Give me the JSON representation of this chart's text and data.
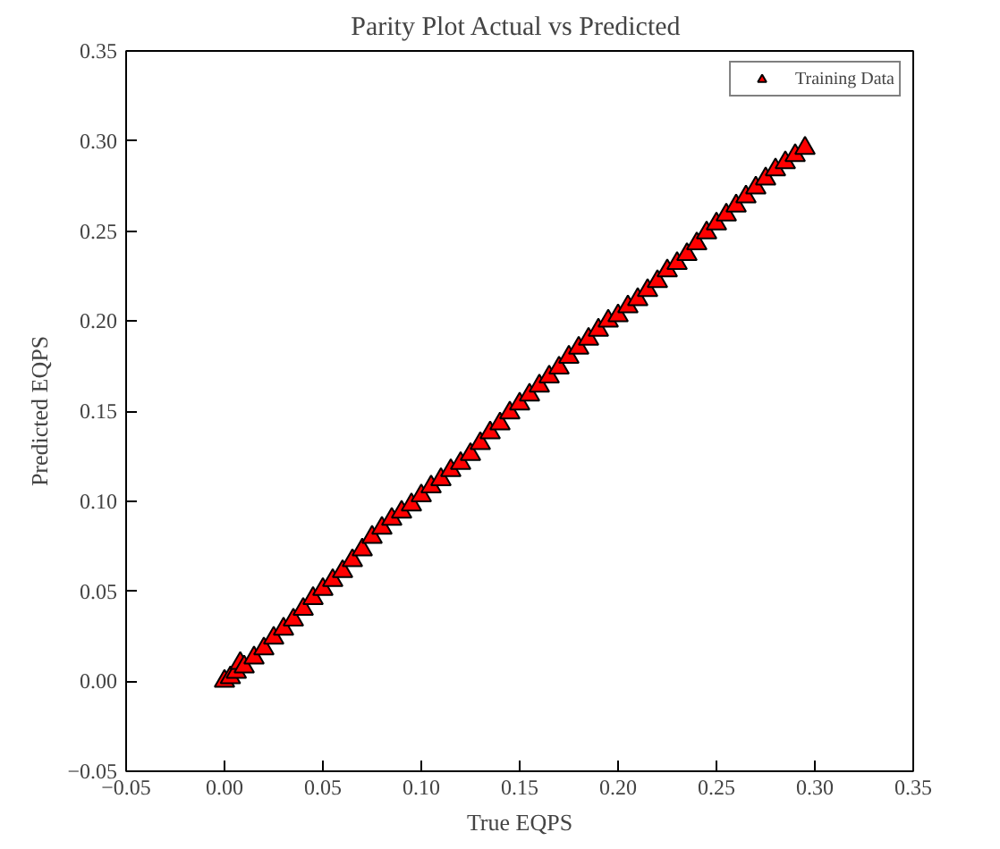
{
  "chart_data": {
    "type": "scatter",
    "title": "Parity Plot Actual  vs Predicted",
    "xlabel": "True EQPS",
    "ylabel": "Predicted EQPS",
    "xlim": [
      -0.05,
      0.35
    ],
    "ylim": [
      -0.05,
      0.35
    ],
    "xticks": [
      {
        "value": -0.05,
        "label": "−0.05"
      },
      {
        "value": 0.0,
        "label": "0.00"
      },
      {
        "value": 0.05,
        "label": "0.05"
      },
      {
        "value": 0.1,
        "label": "0.10"
      },
      {
        "value": 0.15,
        "label": "0.15"
      },
      {
        "value": 0.2,
        "label": "0.20"
      },
      {
        "value": 0.25,
        "label": "0.25"
      },
      {
        "value": 0.3,
        "label": "0.30"
      },
      {
        "value": 0.35,
        "label": "0.35"
      }
    ],
    "yticks": [
      {
        "value": -0.05,
        "label": "−0.05"
      },
      {
        "value": 0.0,
        "label": "0.00"
      },
      {
        "value": 0.05,
        "label": "0.05"
      },
      {
        "value": 0.1,
        "label": "0.10"
      },
      {
        "value": 0.15,
        "label": "0.15"
      },
      {
        "value": 0.2,
        "label": "0.20"
      },
      {
        "value": 0.25,
        "label": "0.25"
      },
      {
        "value": 0.3,
        "label": "0.30"
      },
      {
        "value": 0.35,
        "label": "0.35"
      }
    ],
    "grid": false,
    "legend": "top right",
    "marker": "triangle",
    "series": [
      {
        "name": "Training Data",
        "color": "#ff0000",
        "x": [
          0.0,
          0.003,
          0.006,
          0.008,
          0.01,
          0.015,
          0.02,
          0.025,
          0.03,
          0.035,
          0.04,
          0.045,
          0.05,
          0.055,
          0.06,
          0.065,
          0.07,
          0.075,
          0.08,
          0.085,
          0.09,
          0.095,
          0.1,
          0.105,
          0.11,
          0.115,
          0.12,
          0.125,
          0.13,
          0.135,
          0.14,
          0.145,
          0.15,
          0.155,
          0.16,
          0.165,
          0.17,
          0.175,
          0.18,
          0.185,
          0.19,
          0.195,
          0.2,
          0.205,
          0.21,
          0.215,
          0.22,
          0.225,
          0.23,
          0.235,
          0.24,
          0.245,
          0.25,
          0.255,
          0.26,
          0.265,
          0.27,
          0.275,
          0.28,
          0.285,
          0.29,
          0.295
        ],
        "values": [
          0.0,
          0.002,
          0.005,
          0.01,
          0.008,
          0.013,
          0.018,
          0.024,
          0.029,
          0.034,
          0.04,
          0.046,
          0.051,
          0.056,
          0.061,
          0.067,
          0.073,
          0.08,
          0.085,
          0.09,
          0.094,
          0.098,
          0.103,
          0.108,
          0.112,
          0.117,
          0.121,
          0.126,
          0.132,
          0.138,
          0.143,
          0.149,
          0.154,
          0.159,
          0.164,
          0.169,
          0.174,
          0.18,
          0.185,
          0.19,
          0.195,
          0.2,
          0.203,
          0.208,
          0.212,
          0.217,
          0.222,
          0.228,
          0.232,
          0.237,
          0.243,
          0.249,
          0.254,
          0.259,
          0.264,
          0.269,
          0.274,
          0.279,
          0.284,
          0.288,
          0.292,
          0.296
        ]
      }
    ]
  }
}
